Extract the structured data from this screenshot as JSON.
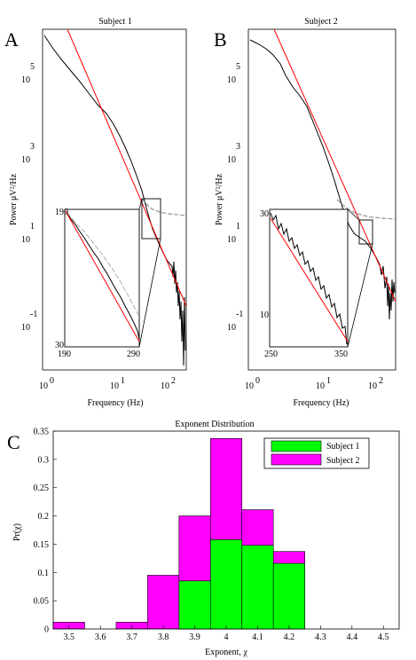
{
  "panels": {
    "A": {
      "letter": "A",
      "title": "Subject 1",
      "xlabel": "Frequency (Hz)",
      "ylabel": "Power μV²/Hz",
      "x_ticks": [
        {
          "base": "10",
          "exp": "0"
        },
        {
          "base": "10",
          "exp": "1"
        },
        {
          "base": "10",
          "exp": "2"
        }
      ],
      "y_ticks": [
        {
          "base": "10",
          "exp": "5"
        },
        {
          "base": "10",
          "exp": "3"
        },
        {
          "base": "10",
          "exp": "1"
        },
        {
          "base": "10",
          "exp": "-1"
        }
      ],
      "inset_ticks": {
        "x_left": "190",
        "x_right": "290",
        "y_top": "190",
        "y_bottom": "30"
      }
    },
    "B": {
      "letter": "B",
      "title": "Subject 2",
      "xlabel": "Frequency (Hz)",
      "ylabel": "Power μV²/Hz",
      "x_ticks": [
        {
          "base": "10",
          "exp": "0"
        },
        {
          "base": "10",
          "exp": "1"
        },
        {
          "base": "10",
          "exp": "2"
        }
      ],
      "y_ticks": [
        {
          "base": "10",
          "exp": "5"
        },
        {
          "base": "10",
          "exp": "3"
        },
        {
          "base": "10",
          "exp": "1"
        },
        {
          "base": "10",
          "exp": "-1"
        }
      ],
      "inset_ticks": {
        "x_left": "250",
        "x_right": "350",
        "y_top": "30",
        "y_bottom": "10"
      }
    },
    "C": {
      "letter": "C"
    }
  },
  "chart_data": [
    {
      "type": "line",
      "panel": "A",
      "title": "Subject 1",
      "xlabel": "Frequency (Hz)",
      "ylabel": "Power μV²/Hz",
      "x_scale": "log",
      "y_scale": "log",
      "xlim": [
        0.8,
        700
      ],
      "ylim": [
        0.006,
        1000000
      ],
      "series": [
        {
          "color": "#000000",
          "x": [
            0.8,
            1,
            2,
            5,
            10,
            20,
            50,
            100,
            150,
            200,
            300,
            400,
            500,
            700
          ],
          "y": [
            500000,
            300000,
            120000,
            30000,
            8000,
            1500,
            200,
            45,
            15,
            6,
            2,
            0.5,
            0.1,
            0.02
          ]
        },
        {
          "color": "#999999",
          "x": [
            200,
            300,
            400,
            500,
            700
          ],
          "y": [
            30,
            25,
            22,
            20,
            18
          ]
        }
      ],
      "fit": {
        "color": "#ff0000",
        "x": [
          5,
          700
        ],
        "y": [
          1000000,
          0.05
        ]
      },
      "inset": {
        "xlim": [
          190,
          290
        ],
        "ylim": [
          30,
          190
        ],
        "series": [
          {
            "color": "#000000",
            "x": [
              190,
              215,
              240,
              265,
              290
            ],
            "y": [
              190,
              130,
              90,
              55,
              30
            ]
          },
          {
            "color": "#999999",
            "x": [
              190,
              215,
              240,
              265,
              290
            ],
            "y": [
              190,
              160,
              130,
              100,
              70
            ]
          }
        ]
      }
    },
    {
      "type": "line",
      "panel": "B",
      "title": "Subject 2",
      "xlabel": "Frequency (Hz)",
      "ylabel": "Power μV²/Hz",
      "x_scale": "log",
      "y_scale": "log",
      "xlim": [
        0.8,
        700
      ],
      "ylim": [
        0.006,
        1000000
      ],
      "series": [
        {
          "color": "#000000",
          "x": [
            0.8,
            1,
            2,
            5,
            10,
            20,
            50,
            100,
            150,
            250,
            350,
            500,
            700
          ],
          "y": [
            600000,
            500000,
            250000,
            60000,
            15000,
            3000,
            500,
            80,
            25,
            6,
            2,
            0.5,
            0.1
          ]
        },
        {
          "color": "#999999",
          "x": [
            250,
            350,
            500,
            700
          ],
          "y": [
            12,
            11,
            10,
            10
          ]
        }
      ],
      "fit": {
        "color": "#ff0000",
        "x": [
          5,
          700
        ],
        "y": [
          1000000,
          0.05
        ]
      },
      "inset": {
        "xlim": [
          250,
          350
        ],
        "ylim": [
          10,
          30
        ],
        "series": [
          {
            "color": "#000000",
            "x": [
              250,
              275,
              300,
              325,
              350
            ],
            "y": [
              30,
              24,
              18,
              14,
              10
            ]
          }
        ]
      }
    },
    {
      "type": "bar",
      "panel": "C",
      "title": "Exponent Distribution",
      "xlabel": "Exponent, χ",
      "ylabel": "Pr(χ)",
      "xlim": [
        3.45,
        4.55
      ],
      "ylim": [
        0,
        0.35
      ],
      "x_ticks": [
        "3.5",
        "3.6",
        "3.7",
        "3.8",
        "3.9",
        "4",
        "4.1",
        "4.2",
        "4.3",
        "4.4",
        "4.5"
      ],
      "y_ticks": [
        "0",
        "0.05",
        "0.1",
        "0.15",
        "0.2",
        "0.25",
        "0.3",
        "0.35"
      ],
      "bin_edges": [
        3.45,
        3.55,
        3.65,
        3.75,
        3.85,
        3.95,
        4.05,
        4.15,
        4.25
      ],
      "series": [
        {
          "name": "Subject 1",
          "color": "#00ff00",
          "values": [
            0,
            0,
            0,
            0,
            0.085,
            0.158,
            0.148,
            0.116
          ]
        },
        {
          "name": "Subject 2",
          "color": "#ff00ff",
          "values": [
            0.012,
            0,
            0.012,
            0.095,
            0.2,
            0.337,
            0.211,
            0.137
          ]
        }
      ],
      "legend": "top-right"
    }
  ]
}
